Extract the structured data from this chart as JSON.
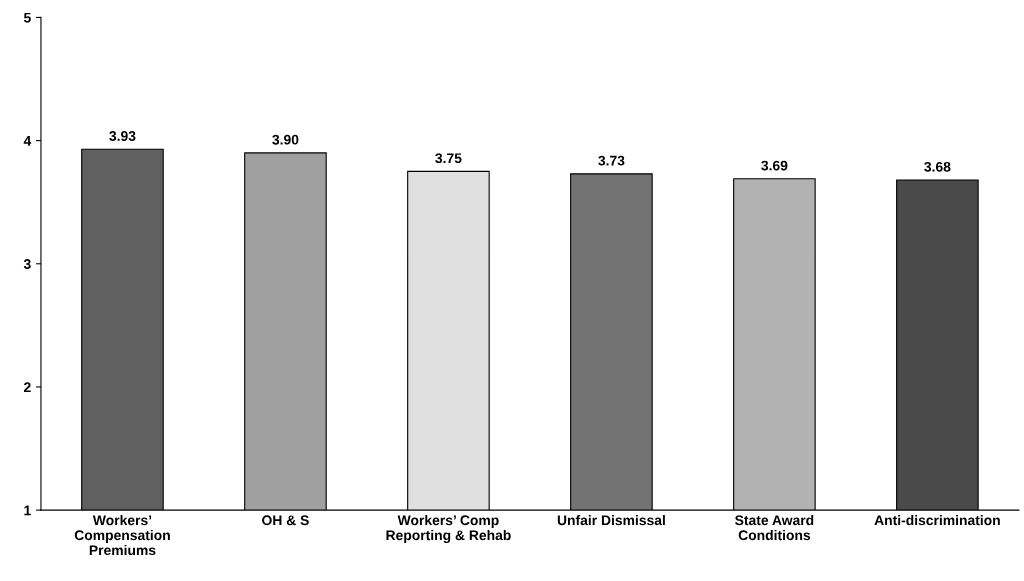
{
  "chart_data": {
    "type": "bar",
    "categories": [
      "Workers’ Compensation Premiums",
      "OH & S",
      "Workers’ Comp Reporting & Rehab",
      "Unfair Dismissal",
      "State Award Conditions",
      "Anti-discrimination"
    ],
    "values": [
      3.93,
      3.9,
      3.75,
      3.73,
      3.69,
      3.68
    ],
    "value_labels": [
      "3.93",
      "3.90",
      "3.75",
      "3.73",
      "3.69",
      "3.68"
    ],
    "colors": [
      "#606060",
      "#a0a0a0",
      "#e0e0e0",
      "#737373",
      "#b2b2b2",
      "#4a4a4a"
    ],
    "ylim": [
      1,
      5
    ],
    "yticks": [
      1,
      2,
      3,
      4,
      5
    ],
    "grid": false,
    "legend": false
  }
}
